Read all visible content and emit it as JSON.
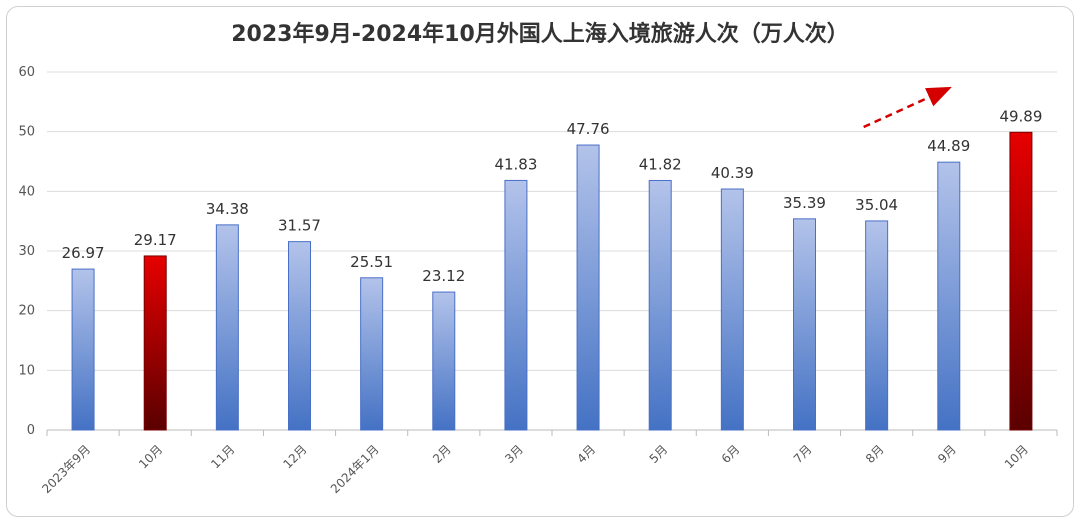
{
  "chart_data": {
    "type": "bar",
    "title": "2023年9月-2024年10月外国人上海入境旅游人次（万人次）",
    "categories": [
      "2023年9月",
      "10月",
      "11月",
      "12月",
      "2024年1月",
      "2月",
      "3月",
      "4月",
      "5月",
      "6月",
      "7月",
      "8月",
      "9月",
      "10月"
    ],
    "values": [
      26.97,
      29.17,
      34.38,
      31.57,
      25.51,
      23.12,
      41.83,
      47.76,
      41.82,
      40.39,
      35.39,
      35.04,
      44.89,
      49.89
    ],
    "highlight_indices": [
      1,
      13
    ],
    "ylim": [
      0,
      60
    ],
    "yticks": [
      0,
      10,
      20,
      30,
      40,
      50,
      60
    ],
    "grid": true,
    "trend_arrow": "dashed red arrow pointing up-right above the last bars",
    "colors": {
      "bar_top": "#b3c3ea",
      "bar_bottom": "#4472c4",
      "bar_border": "#4a6fc7",
      "highlight_top": "#e60000",
      "highlight_bottom": "#5a0000",
      "arrow": "#d40000",
      "grid": "#dcdcdc"
    }
  }
}
